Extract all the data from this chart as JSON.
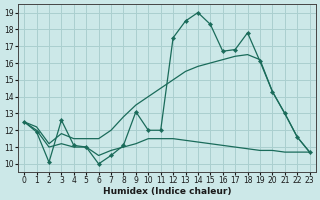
{
  "xlabel": "Humidex (Indice chaleur)",
  "xlim": [
    -0.5,
    23.5
  ],
  "ylim": [
    9.5,
    19.5
  ],
  "yticks": [
    10,
    11,
    12,
    13,
    14,
    15,
    16,
    17,
    18,
    19
  ],
  "xticks": [
    0,
    1,
    2,
    3,
    4,
    5,
    6,
    7,
    8,
    9,
    10,
    11,
    12,
    13,
    14,
    15,
    16,
    17,
    18,
    19,
    20,
    21,
    22,
    23
  ],
  "background_color": "#cce8e8",
  "grid_color": "#aacfcf",
  "line_color": "#1a6b5a",
  "line1_x": [
    0,
    1,
    2,
    3,
    4,
    5,
    6,
    7,
    8,
    9,
    10,
    11,
    12,
    13,
    14,
    15,
    16,
    17,
    18,
    19,
    20,
    21,
    22,
    23
  ],
  "line1_y": [
    12.5,
    11.9,
    10.1,
    12.6,
    11.1,
    11.0,
    10.0,
    10.5,
    11.1,
    13.1,
    12.0,
    12.0,
    17.5,
    18.5,
    19.0,
    18.3,
    16.7,
    16.8,
    17.8,
    16.1,
    14.3,
    13.0,
    11.6,
    10.7
  ],
  "line2_x": [
    0,
    1,
    2,
    3,
    4,
    5,
    6,
    7,
    8,
    9,
    10,
    11,
    12,
    13,
    14,
    15,
    16,
    17,
    18,
    19,
    20,
    21,
    22,
    23
  ],
  "line2_y": [
    12.5,
    12.2,
    11.2,
    11.8,
    11.5,
    11.5,
    11.5,
    12.0,
    12.8,
    13.5,
    14.0,
    14.5,
    15.0,
    15.5,
    15.8,
    16.0,
    16.2,
    16.4,
    16.5,
    16.2,
    14.3,
    13.0,
    11.6,
    10.7
  ],
  "line3_x": [
    0,
    1,
    2,
    3,
    4,
    5,
    6,
    7,
    8,
    9,
    10,
    11,
    12,
    13,
    14,
    15,
    16,
    17,
    18,
    19,
    20,
    21,
    22,
    23
  ],
  "line3_y": [
    12.5,
    12.0,
    11.0,
    11.2,
    11.0,
    11.0,
    10.5,
    10.8,
    11.0,
    11.2,
    11.5,
    11.5,
    11.5,
    11.4,
    11.3,
    11.2,
    11.1,
    11.0,
    10.9,
    10.8,
    10.8,
    10.7,
    10.7,
    10.7
  ]
}
